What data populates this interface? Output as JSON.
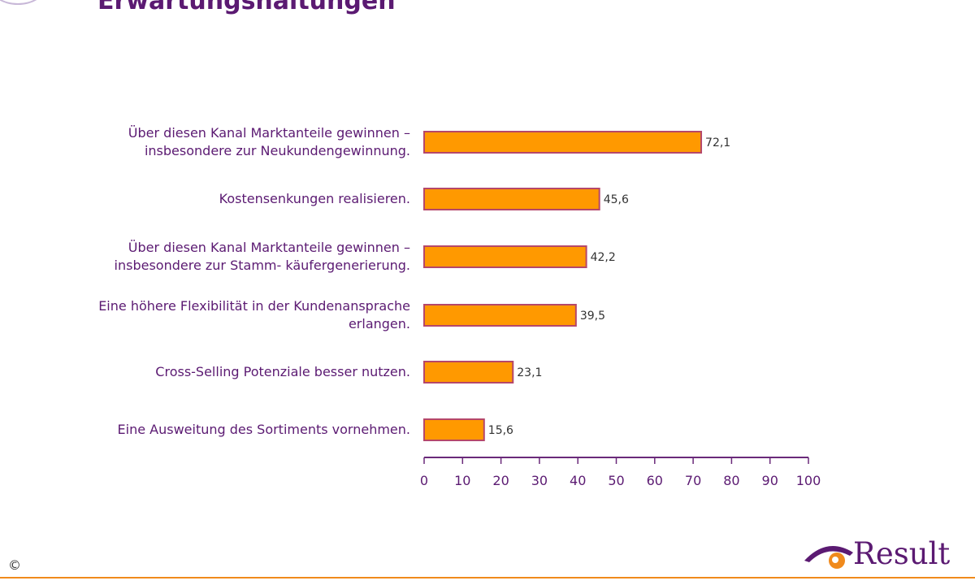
{
  "title": "Erwartungshaltungen",
  "chart_data": {
    "type": "bar",
    "orientation": "horizontal",
    "categories": [
      [
        "Über diesen Kanal Marktanteile gewinnen –",
        "insbesondere zur Neukundengewinnung."
      ],
      [
        "Kostensenkungen realisieren."
      ],
      [
        "Über diesen Kanal Marktanteile gewinnen –",
        "insbesondere zur Stamm- käufergenerierung."
      ],
      [
        "Eine höhere Flexibilität in der Kundenansprache",
        "erlangen."
      ],
      [
        "Cross-Selling Potenziale besser nutzen."
      ],
      [
        "Eine Ausweitung des Sortiments vornehmen."
      ]
    ],
    "values": [
      72.1,
      45.6,
      42.2,
      39.5,
      23.1,
      15.6
    ],
    "value_labels": [
      "72,1",
      "45,6",
      "42,2",
      "39,5",
      "23,1",
      "15,6"
    ],
    "xlim": [
      0,
      100
    ],
    "xticks": [
      0,
      10,
      20,
      30,
      40,
      50,
      60,
      70,
      80,
      90,
      100
    ],
    "grid": false,
    "colors": {
      "bar_fill": "#ff9900",
      "bar_stroke": "#b5476a",
      "label_text": "#5b1a72",
      "axis": "#6a2a7a"
    }
  },
  "footer": {
    "copyright": "©",
    "logo_text": "Result",
    "logo_icon": "result-eye-icon"
  }
}
